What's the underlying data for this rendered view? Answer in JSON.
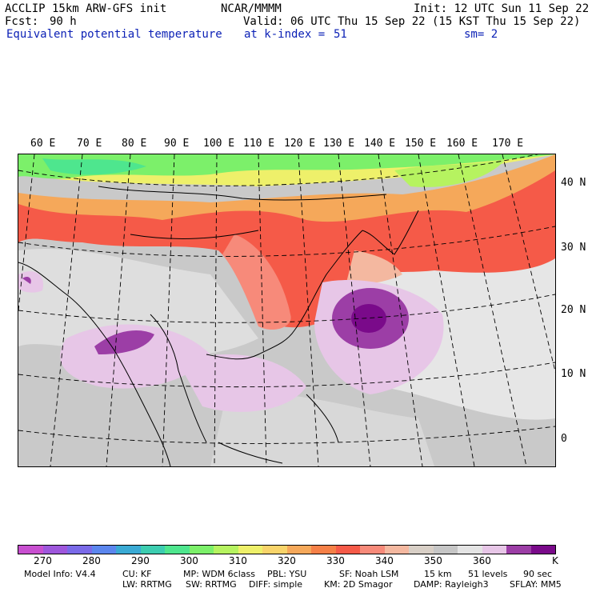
{
  "header": {
    "title": "ACCLIP 15km ARW-GFS init",
    "source": "NCAR/MMMM",
    "init": "Init: 12 UTC Sun 11 Sep 22",
    "fcst_label": "Fcst:",
    "fcst_value": "90 h",
    "valid": "Valid: 06 UTC Thu 15 Sep 22 (15 KST Thu 15 Sep 22)",
    "field": "Equivalent potential temperature",
    "level": "at k-index =",
    "level_value": "51",
    "smoothing": "sm= 2"
  },
  "map": {
    "longitude_labels": [
      "60 E",
      "70 E",
      "80 E",
      "90 E",
      "100 E",
      "110 E",
      "120 E",
      "130 E",
      "140 E",
      "150 E",
      "160 E",
      "170 E"
    ],
    "latitude_labels": [
      "40 N",
      "30 N",
      "20 N",
      "10 N",
      "0"
    ],
    "feature": "typhoon-core-low-theta-e"
  },
  "colorbar": {
    "colors": [
      "#c84fd0",
      "#9e57dc",
      "#7a6ae8",
      "#5b86ee",
      "#3aaad4",
      "#3ccdb0",
      "#4ee68e",
      "#7cf06a",
      "#b6f360",
      "#eef06a",
      "#f8d46a",
      "#f5a85a",
      "#f58047",
      "#f55a48",
      "#f78a7a",
      "#f4b8a0",
      "#d8cfc6",
      "#c6c6c6",
      "#e4e4e4",
      "#e7c6e7",
      "#9c3ea6",
      "#7a0a8a"
    ],
    "tick_labels": [
      "270",
      "280",
      "290",
      "300",
      "310",
      "320",
      "330",
      "340",
      "350",
      "360"
    ],
    "unit": "K"
  },
  "footer": {
    "line1": [
      "Model Info: V4.4",
      "CU: KF",
      "MP: WDM 6class",
      "PBL: YSU",
      "SF: Noah LSM",
      "15 km",
      "51 levels",
      "90 sec"
    ],
    "line2": [
      "LW: RRTMG",
      "SW: RRTMG",
      "DIFF: simple",
      "KM: 2D Smagor",
      "DAMP: Rayleigh3",
      "SFLAY: MM5"
    ]
  }
}
